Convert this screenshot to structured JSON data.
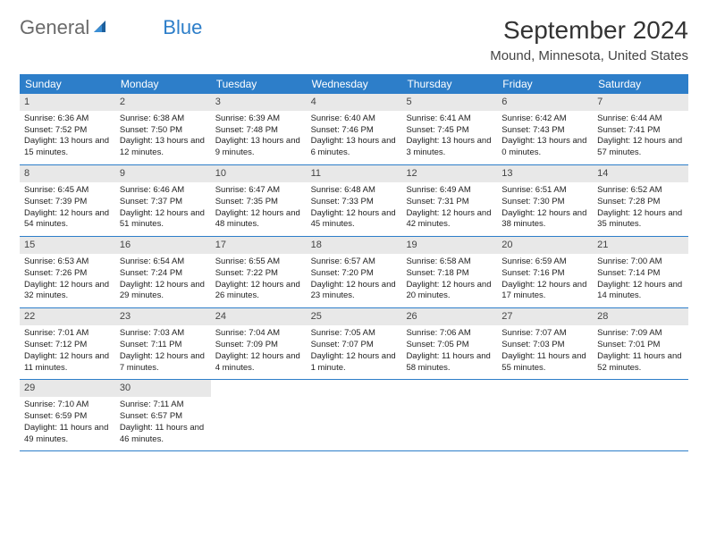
{
  "logo": {
    "text1": "General",
    "text2": "Blue"
  },
  "title": "September 2024",
  "location": "Mound, Minnesota, United States",
  "colors": {
    "header_bg": "#2d7ec9",
    "daynum_bg": "#e8e8e8",
    "rule": "#2d7ec9"
  },
  "dow": [
    "Sunday",
    "Monday",
    "Tuesday",
    "Wednesday",
    "Thursday",
    "Friday",
    "Saturday"
  ],
  "days": [
    {
      "n": "1",
      "sr": "6:36 AM",
      "ss": "7:52 PM",
      "dl": "13 hours and 15 minutes."
    },
    {
      "n": "2",
      "sr": "6:38 AM",
      "ss": "7:50 PM",
      "dl": "13 hours and 12 minutes."
    },
    {
      "n": "3",
      "sr": "6:39 AM",
      "ss": "7:48 PM",
      "dl": "13 hours and 9 minutes."
    },
    {
      "n": "4",
      "sr": "6:40 AM",
      "ss": "7:46 PM",
      "dl": "13 hours and 6 minutes."
    },
    {
      "n": "5",
      "sr": "6:41 AM",
      "ss": "7:45 PM",
      "dl": "13 hours and 3 minutes."
    },
    {
      "n": "6",
      "sr": "6:42 AM",
      "ss": "7:43 PM",
      "dl": "13 hours and 0 minutes."
    },
    {
      "n": "7",
      "sr": "6:44 AM",
      "ss": "7:41 PM",
      "dl": "12 hours and 57 minutes."
    },
    {
      "n": "8",
      "sr": "6:45 AM",
      "ss": "7:39 PM",
      "dl": "12 hours and 54 minutes."
    },
    {
      "n": "9",
      "sr": "6:46 AM",
      "ss": "7:37 PM",
      "dl": "12 hours and 51 minutes."
    },
    {
      "n": "10",
      "sr": "6:47 AM",
      "ss": "7:35 PM",
      "dl": "12 hours and 48 minutes."
    },
    {
      "n": "11",
      "sr": "6:48 AM",
      "ss": "7:33 PM",
      "dl": "12 hours and 45 minutes."
    },
    {
      "n": "12",
      "sr": "6:49 AM",
      "ss": "7:31 PM",
      "dl": "12 hours and 42 minutes."
    },
    {
      "n": "13",
      "sr": "6:51 AM",
      "ss": "7:30 PM",
      "dl": "12 hours and 38 minutes."
    },
    {
      "n": "14",
      "sr": "6:52 AM",
      "ss": "7:28 PM",
      "dl": "12 hours and 35 minutes."
    },
    {
      "n": "15",
      "sr": "6:53 AM",
      "ss": "7:26 PM",
      "dl": "12 hours and 32 minutes."
    },
    {
      "n": "16",
      "sr": "6:54 AM",
      "ss": "7:24 PM",
      "dl": "12 hours and 29 minutes."
    },
    {
      "n": "17",
      "sr": "6:55 AM",
      "ss": "7:22 PM",
      "dl": "12 hours and 26 minutes."
    },
    {
      "n": "18",
      "sr": "6:57 AM",
      "ss": "7:20 PM",
      "dl": "12 hours and 23 minutes."
    },
    {
      "n": "19",
      "sr": "6:58 AM",
      "ss": "7:18 PM",
      "dl": "12 hours and 20 minutes."
    },
    {
      "n": "20",
      "sr": "6:59 AM",
      "ss": "7:16 PM",
      "dl": "12 hours and 17 minutes."
    },
    {
      "n": "21",
      "sr": "7:00 AM",
      "ss": "7:14 PM",
      "dl": "12 hours and 14 minutes."
    },
    {
      "n": "22",
      "sr": "7:01 AM",
      "ss": "7:12 PM",
      "dl": "12 hours and 11 minutes."
    },
    {
      "n": "23",
      "sr": "7:03 AM",
      "ss": "7:11 PM",
      "dl": "12 hours and 7 minutes."
    },
    {
      "n": "24",
      "sr": "7:04 AM",
      "ss": "7:09 PM",
      "dl": "12 hours and 4 minutes."
    },
    {
      "n": "25",
      "sr": "7:05 AM",
      "ss": "7:07 PM",
      "dl": "12 hours and 1 minute."
    },
    {
      "n": "26",
      "sr": "7:06 AM",
      "ss": "7:05 PM",
      "dl": "11 hours and 58 minutes."
    },
    {
      "n": "27",
      "sr": "7:07 AM",
      "ss": "7:03 PM",
      "dl": "11 hours and 55 minutes."
    },
    {
      "n": "28",
      "sr": "7:09 AM",
      "ss": "7:01 PM",
      "dl": "11 hours and 52 minutes."
    },
    {
      "n": "29",
      "sr": "7:10 AM",
      "ss": "6:59 PM",
      "dl": "11 hours and 49 minutes."
    },
    {
      "n": "30",
      "sr": "7:11 AM",
      "ss": "6:57 PM",
      "dl": "11 hours and 46 minutes."
    }
  ],
  "labels": {
    "sunrise": "Sunrise: ",
    "sunset": "Sunset: ",
    "daylight": "Daylight: "
  }
}
